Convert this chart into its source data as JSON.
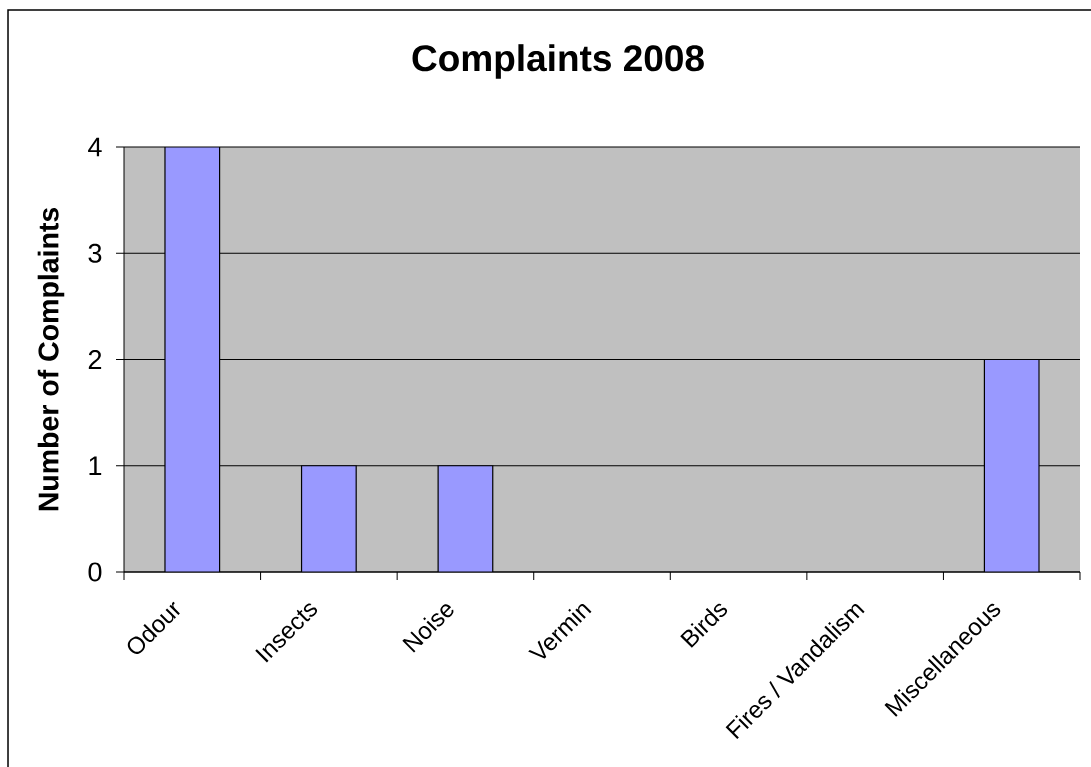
{
  "chart_data": {
    "type": "bar",
    "title": "Complaints 2008",
    "ylabel": "Number of Complaints",
    "categories": [
      "Odour",
      "Insects",
      "Noise",
      "Vermin",
      "Birds",
      "Fires / Vandalism",
      "Miscellaneous"
    ],
    "values": [
      4,
      1,
      1,
      0,
      0,
      0,
      2
    ],
    "color": "#9999ff",
    "ylim": [
      0,
      4
    ],
    "yticks": [
      0,
      1,
      2,
      3,
      4
    ],
    "grid": "y"
  }
}
